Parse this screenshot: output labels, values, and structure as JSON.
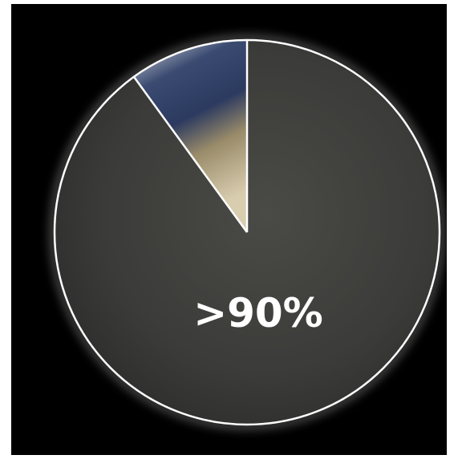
{
  "overlay": {
    "label": ">90%"
  }
}
